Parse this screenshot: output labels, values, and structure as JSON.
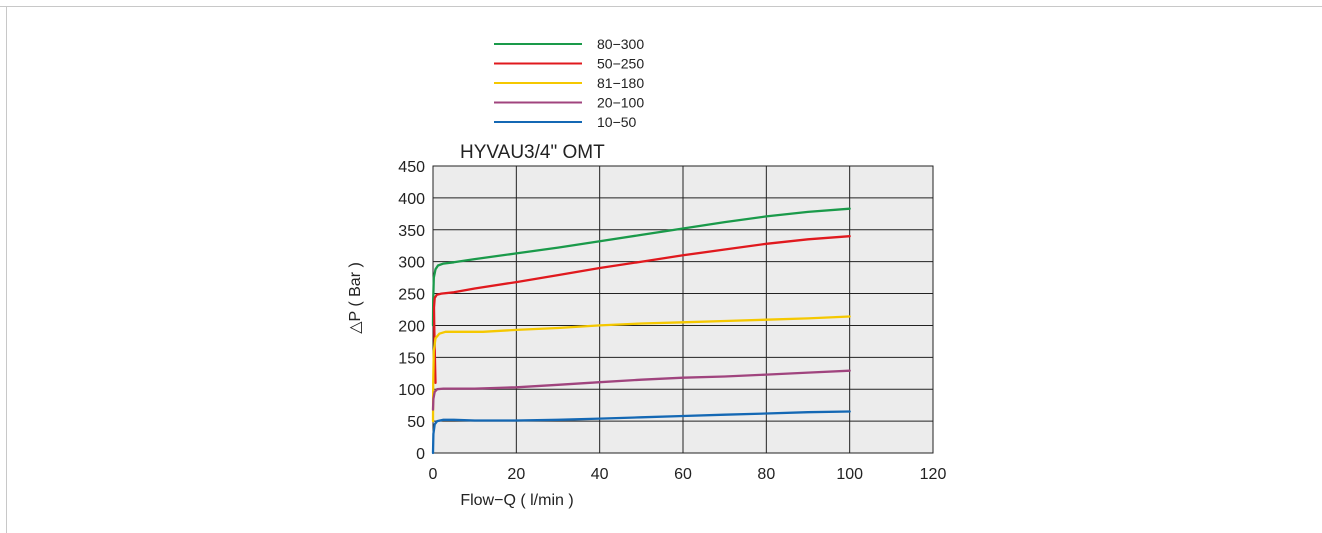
{
  "chart_data": {
    "type": "line",
    "title": "HYVAU3/4\" OMT",
    "xlabel": "Flow−Q ( l/min )",
    "ylabel": "△P ( Bar )",
    "xlim": [
      0,
      120
    ],
    "ylim": [
      0,
      450
    ],
    "xticks": [
      "0",
      "20",
      "40",
      "60",
      "80",
      "100",
      "120"
    ],
    "yticks": [
      "0",
      "50",
      "100",
      "150",
      "200",
      "250",
      "300",
      "350",
      "400",
      "450"
    ],
    "grid": true,
    "legend_position": "top-left",
    "background": "#ececec",
    "series": [
      {
        "name": "80−300",
        "color": "#1a9a4a",
        "points": [
          [
            0,
            200
          ],
          [
            0.05,
            240
          ],
          [
            0.2,
            275
          ],
          [
            0.6,
            288
          ],
          [
            1.2,
            294
          ],
          [
            2.5,
            297
          ],
          [
            5,
            299
          ],
          [
            10,
            304
          ],
          [
            20,
            313
          ],
          [
            30,
            322
          ],
          [
            40,
            332
          ],
          [
            50,
            342
          ],
          [
            60,
            352
          ],
          [
            70,
            362
          ],
          [
            80,
            371
          ],
          [
            90,
            378
          ],
          [
            100,
            383
          ]
        ]
      },
      {
        "name": "50−250",
        "color": "#e0191e",
        "points": [
          [
            0.6,
            110
          ],
          [
            0.45,
            150
          ],
          [
            0.3,
            195
          ],
          [
            0.25,
            228
          ],
          [
            0.4,
            243
          ],
          [
            0.9,
            248
          ],
          [
            2,
            250
          ],
          [
            5,
            252
          ],
          [
            10,
            258
          ],
          [
            20,
            268
          ],
          [
            30,
            279
          ],
          [
            40,
            290
          ],
          [
            50,
            300
          ],
          [
            60,
            310
          ],
          [
            70,
            319
          ],
          [
            80,
            328
          ],
          [
            90,
            335
          ],
          [
            100,
            340
          ]
        ]
      },
      {
        "name": "81−180",
        "color": "#f5c800",
        "points": [
          [
            0,
            50
          ],
          [
            0.05,
            110
          ],
          [
            0.2,
            160
          ],
          [
            0.6,
            180
          ],
          [
            1.5,
            187
          ],
          [
            3,
            190
          ],
          [
            6,
            190
          ],
          [
            12,
            190
          ],
          [
            20,
            193
          ],
          [
            30,
            196
          ],
          [
            40,
            200
          ],
          [
            50,
            203
          ],
          [
            60,
            205
          ],
          [
            70,
            207
          ],
          [
            80,
            209
          ],
          [
            90,
            211
          ],
          [
            100,
            214
          ]
        ]
      },
      {
        "name": "20−100",
        "color": "#a0447e",
        "points": [
          [
            0,
            68
          ],
          [
            0.1,
            85
          ],
          [
            0.4,
            96
          ],
          [
            1,
            100
          ],
          [
            2.5,
            101
          ],
          [
            5,
            101
          ],
          [
            10,
            101
          ],
          [
            20,
            103
          ],
          [
            30,
            107
          ],
          [
            40,
            111
          ],
          [
            50,
            115
          ],
          [
            60,
            118
          ],
          [
            70,
            120
          ],
          [
            80,
            123
          ],
          [
            90,
            126
          ],
          [
            100,
            129
          ]
        ]
      },
      {
        "name": "10−50",
        "color": "#1468b4",
        "points": [
          [
            0,
            0
          ],
          [
            0.1,
            30
          ],
          [
            0.4,
            45
          ],
          [
            1,
            50
          ],
          [
            2.5,
            52
          ],
          [
            5,
            52
          ],
          [
            10,
            51
          ],
          [
            20,
            51
          ],
          [
            30,
            52
          ],
          [
            40,
            54
          ],
          [
            50,
            56
          ],
          [
            60,
            58
          ],
          [
            70,
            60
          ],
          [
            80,
            62
          ],
          [
            90,
            64
          ],
          [
            100,
            65
          ]
        ]
      }
    ]
  }
}
